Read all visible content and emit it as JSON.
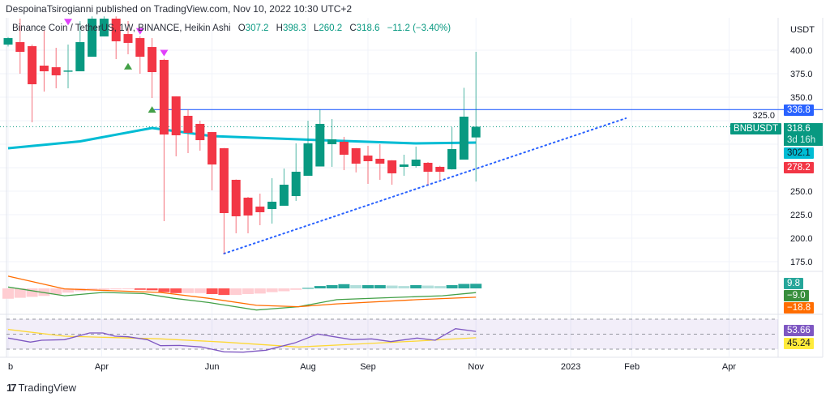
{
  "header": {
    "published": "DespoinaTsirogianni published on TradingView.com, Nov 10, 2022 10:30 UTC+2"
  },
  "legend": {
    "symbol": "Binance Coin / TetherUS, 1W, BINANCE, Heikin Ashi",
    "o_label": "O",
    "o": "307.2",
    "h_label": "H",
    "h": "398.3",
    "l_label": "L",
    "l": "260.2",
    "c_label": "C",
    "c": "318.6",
    "change": "−11.2 (−3.40%)"
  },
  "axis": {
    "currency": "USDT",
    "price_ticks": [
      "400.0",
      "375.0",
      "350.0",
      "325.0",
      "250.0",
      "225.0",
      "200.0",
      "175.0"
    ]
  },
  "badges": {
    "resistance": "336.8",
    "ticker": "BNBUSDT",
    "last_price": "318.6",
    "countdown": "3d 16h",
    "ma": "302.1",
    "trend": "278.2",
    "macd_hist": "9.8",
    "macd": "−9.0",
    "macd_signal": "−18.8",
    "rsi": "53.66",
    "rsi_ma": "45.24"
  },
  "colors": {
    "up": "#089981",
    "down": "#f23645",
    "ma": "#00bcd4",
    "level": "#2962ff",
    "macd": "#43a047",
    "signal": "#ff6d00",
    "rsi": "#7e57c2",
    "rsi_ma": "#ffeb3b"
  },
  "footer": {
    "brand": "TradingView"
  },
  "chart_data": {
    "type": "candlestick",
    "title": "Binance Coin / TetherUS, 1W, BINANCE, Heikin Ashi",
    "ylabel": "USDT",
    "ylim": [
      165,
      436
    ],
    "candles": [
      [
        406,
        414,
        404,
        412.9
      ],
      [
        408.6,
        433.6,
        375,
        398.3
      ],
      [
        404.3,
        406,
        323.3,
        363.8
      ],
      [
        383.6,
        421.6,
        356,
        377.6
      ],
      [
        381.9,
        402.6,
        359.5,
        373.3
      ],
      [
        377.6,
        406,
        359.5,
        378.4
      ],
      [
        377.6,
        431,
        377.6,
        408.6
      ],
      [
        393.1,
        436,
        393.1,
        433.6
      ],
      [
        414.7,
        436,
        414.7,
        433.6
      ],
      [
        433.6,
        436,
        390.5,
        409.5
      ],
      [
        417.2,
        431,
        395.7,
        407.8
      ],
      [
        412.9,
        415,
        375,
        393.1
      ],
      [
        403.4,
        412.9,
        349.1,
        376.7
      ],
      [
        389.7,
        391,
        218.1,
        310.3
      ],
      [
        350.9,
        351,
        287.1,
        309.5
      ],
      [
        330.2,
        337.1,
        290.5,
        312.1
      ],
      [
        321.6,
        325,
        293.1,
        304.3
      ],
      [
        312.9,
        313,
        250.9,
        278.4
      ],
      [
        295.7,
        296,
        183.6,
        226.7
      ],
      [
        262.1,
        262.5,
        205.2,
        223.3
      ],
      [
        243.1,
        244,
        205.2,
        224.1
      ],
      [
        233.6,
        247.4,
        213.8,
        227.6
      ],
      [
        231,
        263.8,
        215.5,
        238.8
      ],
      [
        234.5,
        274.1,
        234.5,
        256.9
      ],
      [
        244.8,
        300.9,
        239.7,
        270.7
      ],
      [
        266.4,
        325,
        266.4,
        300.9
      ],
      [
        276.3,
        337.1,
        276.3,
        321.6
      ],
      [
        300,
        326.7,
        275.9,
        305.2
      ],
      [
        302.6,
        307.8,
        272.4,
        288.8
      ],
      [
        295.7,
        296,
        270,
        279.3
      ],
      [
        287.9,
        298.3,
        257.8,
        281.9
      ],
      [
        284.5,
        300,
        262.1,
        279.3
      ],
      [
        282.8,
        283,
        256.9,
        269
      ],
      [
        275.9,
        288.8,
        266.4,
        278.4
      ],
      [
        276.7,
        297.4,
        275,
        283.6
      ],
      [
        280.2,
        281,
        256.9,
        270.7
      ],
      [
        275.9,
        277,
        262.1,
        270.7
      ],
      [
        273.3,
        318.1,
        273,
        294.8
      ],
      [
        283.6,
        360,
        283.6,
        329.3
      ],
      [
        307.2,
        398.3,
        260.2,
        318.6
      ]
    ],
    "ma_line": [
      [
        0,
        295.7
      ],
      [
        6,
        303
      ],
      [
        12,
        317.2
      ],
      [
        17,
        308.6
      ],
      [
        26,
        304.3
      ],
      [
        34,
        300.9
      ],
      [
        39,
        301.7
      ]
    ],
    "resistance_level": {
      "price": 336.8,
      "from_index": 12
    },
    "trendline": {
      "from": [
        18,
        183.6
      ],
      "to": [
        51.5,
        327.6
      ]
    },
    "signals_down": [
      [
        5,
        430
      ],
      [
        11,
        420
      ],
      [
        13,
        397
      ]
    ],
    "signals_up": [
      [
        10,
        383
      ],
      [
        12,
        337
      ]
    ],
    "time_labels": [
      [
        "b",
        0
      ],
      [
        "Apr",
        7.8
      ],
      [
        "Jun",
        17
      ],
      [
        "Aug",
        25
      ],
      [
        "Sep",
        30
      ],
      [
        "Nov",
        39
      ],
      [
        "2023",
        46.9
      ],
      [
        "Feb",
        52
      ],
      [
        "Apr",
        60.1
      ]
    ],
    "macd_histogram": [
      -22,
      -20,
      -18,
      -16,
      -13,
      -9,
      -6,
      -4,
      -3,
      -2,
      -1.5,
      -3,
      -4,
      -8,
      -10,
      -10,
      -10,
      -12,
      -14,
      -14,
      -12,
      -11,
      -8,
      -6,
      -3,
      1,
      5,
      7,
      9,
      7,
      7,
      7,
      6,
      5,
      7,
      6,
      5,
      7,
      9.5,
      9.8
    ],
    "macd_line": [
      [
        0,
        2.9
      ],
      [
        4.7,
        -15.7
      ],
      [
        7.9,
        -8.7
      ],
      [
        11.3,
        -11
      ],
      [
        13.8,
        -21
      ],
      [
        16.7,
        -30
      ],
      [
        20.7,
        -46
      ],
      [
        24.2,
        -39
      ],
      [
        27.4,
        -24
      ],
      [
        31.4,
        -20
      ],
      [
        36.2,
        -15.7
      ],
      [
        39,
        -9
      ]
    ],
    "signal_line": [
      [
        0,
        26
      ],
      [
        4.7,
        -1
      ],
      [
        8.7,
        -5
      ],
      [
        12.7,
        -8.7
      ],
      [
        16.7,
        -21
      ],
      [
        20.7,
        -36
      ],
      [
        24.2,
        -39
      ],
      [
        27.4,
        -33
      ],
      [
        34.1,
        -24
      ],
      [
        39,
        -18.8
      ]
    ],
    "rsi": [
      [
        0,
        44.8
      ],
      [
        1.86,
        39.4
      ],
      [
        2.8,
        41.9
      ],
      [
        4.7,
        42.6
      ],
      [
        6.8,
        51.6
      ],
      [
        7.9,
        51.6
      ],
      [
        8.9,
        47.3
      ],
      [
        10,
        46.5
      ],
      [
        11.6,
        42.6
      ],
      [
        12.7,
        34.6
      ],
      [
        14.3,
        35
      ],
      [
        16.1,
        32.9
      ],
      [
        18,
        26.4
      ],
      [
        19.6,
        26
      ],
      [
        21.5,
        28.6
      ],
      [
        23.9,
        38.3
      ],
      [
        25.8,
        50.2
      ],
      [
        27.6,
        45.5
      ],
      [
        28.7,
        42.6
      ],
      [
        30.3,
        43.7
      ],
      [
        31.9,
        40.1
      ],
      [
        34.1,
        44.8
      ],
      [
        35.6,
        41.9
      ],
      [
        37.3,
        57.4
      ],
      [
        39,
        53.66
      ]
    ],
    "rsi_ma": [
      [
        0,
        56.3
      ],
      [
        4.7,
        47.3
      ],
      [
        12.7,
        43.7
      ],
      [
        18,
        39.4
      ],
      [
        24.2,
        32.9
      ],
      [
        28.7,
        36.5
      ],
      [
        34.1,
        40.8
      ],
      [
        39,
        45.24
      ]
    ],
    "rsi_bands": [
      70,
      50,
      30
    ]
  }
}
